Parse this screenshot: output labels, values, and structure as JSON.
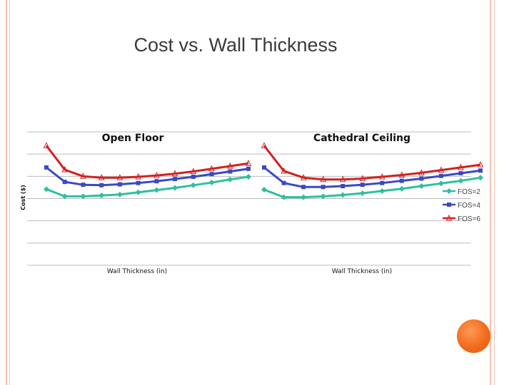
{
  "page": {
    "title": "Cost vs. Wall Thickness",
    "colors": {
      "border": "#f5c2ad",
      "accent_circle": "#f26b1c"
    }
  },
  "chart_data": [
    {
      "type": "line",
      "title": "Open Floor",
      "xlabel": "Wall Thickness (in)",
      "ylabel": "Cost ($)",
      "x": [
        1,
        2,
        3,
        4,
        5,
        6,
        7,
        8,
        9,
        10,
        11,
        12
      ],
      "ylim": [
        0,
        6
      ],
      "grid": true,
      "series": [
        {
          "name": "FOS=2",
          "color": "#2ebf9f",
          "marker": "diamond",
          "values": [
            3.42,
            3.1,
            3.1,
            3.14,
            3.18,
            3.28,
            3.38,
            3.48,
            3.6,
            3.72,
            3.86,
            3.98
          ]
        },
        {
          "name": "FOS=4",
          "color": "#3a49c4",
          "marker": "square",
          "values": [
            4.4,
            3.75,
            3.62,
            3.6,
            3.64,
            3.7,
            3.78,
            3.88,
            3.98,
            4.1,
            4.22,
            4.34
          ]
        },
        {
          "name": "FOS=6",
          "color": "#d42020",
          "marker": "triangle",
          "values": [
            5.38,
            4.3,
            4.0,
            3.94,
            3.94,
            3.98,
            4.04,
            4.12,
            4.22,
            4.34,
            4.46,
            4.58
          ]
        }
      ]
    },
    {
      "type": "line",
      "title": "Cathedral Ceiling",
      "xlabel": "Wall Thickness (in)",
      "ylabel": "",
      "x": [
        1,
        2,
        3,
        4,
        5,
        6,
        7,
        8,
        9,
        10,
        11,
        12
      ],
      "ylim": [
        0,
        6
      ],
      "grid": true,
      "series": [
        {
          "name": "FOS=2",
          "color": "#2ebf9f",
          "marker": "diamond",
          "values": [
            3.4,
            3.06,
            3.06,
            3.1,
            3.16,
            3.24,
            3.34,
            3.44,
            3.56,
            3.68,
            3.8,
            3.94
          ]
        },
        {
          "name": "FOS=4",
          "color": "#3a49c4",
          "marker": "square",
          "values": [
            4.4,
            3.7,
            3.52,
            3.52,
            3.56,
            3.62,
            3.7,
            3.8,
            3.9,
            4.02,
            4.14,
            4.26
          ]
        },
        {
          "name": "FOS=6",
          "color": "#d42020",
          "marker": "triangle",
          "values": [
            5.38,
            4.24,
            3.94,
            3.86,
            3.86,
            3.9,
            3.98,
            4.06,
            4.16,
            4.28,
            4.4,
            4.52
          ]
        }
      ]
    }
  ],
  "legend": {
    "placement": "right",
    "entries": [
      "FOS=2",
      "FOS=4",
      "FOS=6"
    ]
  }
}
